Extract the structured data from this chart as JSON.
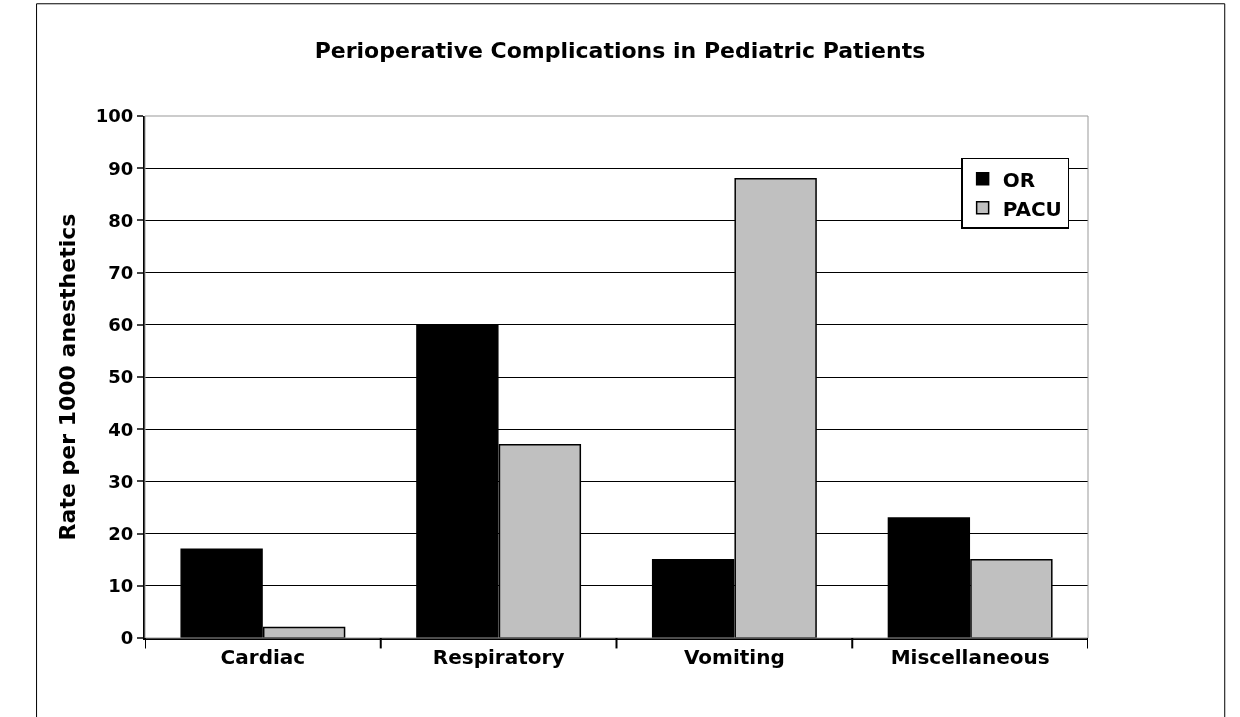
{
  "chart_data": {
    "type": "bar",
    "title": "Perioperative Complications in Pediatric Patients",
    "ylabel": "Rate per 1000 anesthetics",
    "categories": [
      "Cardiac",
      "Respiratory",
      "Vomiting",
      "Miscellaneous"
    ],
    "series": [
      {
        "name": "OR",
        "color": "#000000",
        "values": [
          17,
          60,
          15,
          23
        ]
      },
      {
        "name": "PACU",
        "color": "#c0c0c0",
        "values": [
          2,
          37,
          88,
          15
        ]
      }
    ],
    "ylim": [
      0,
      100
    ],
    "yticks": [
      0,
      10,
      20,
      30,
      40,
      50,
      60,
      70,
      80,
      90,
      100
    ],
    "grid": "y",
    "legend": "top right"
  }
}
